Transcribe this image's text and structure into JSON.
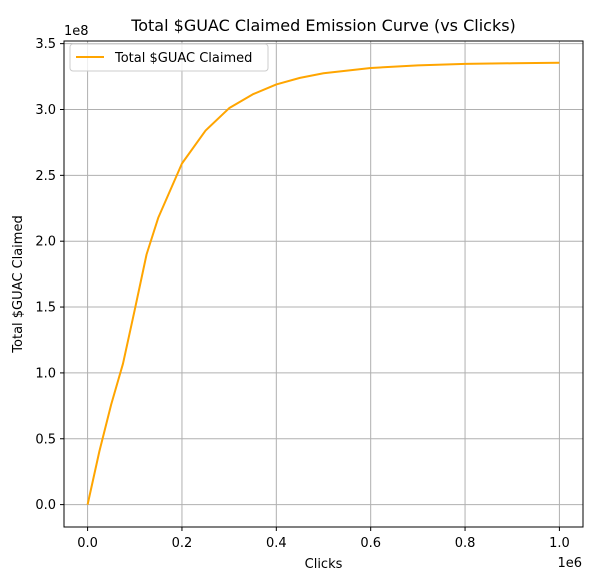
{
  "chart_data": {
    "type": "line",
    "title": "Total $GUAC Claimed Emission Curve (vs Clicks)",
    "xlabel": "Clicks",
    "ylabel": "Total $GUAC Claimed",
    "x_offset_label": "1e6",
    "y_offset_label": "1e8",
    "xlim": [
      -50000,
      1050000
    ],
    "ylim": [
      -17000000,
      352000000
    ],
    "x_ticks": [
      0,
      200000,
      400000,
      600000,
      800000,
      1000000
    ],
    "x_tick_labels": [
      "0.0",
      "0.2",
      "0.4",
      "0.6",
      "0.8",
      "1.0"
    ],
    "y_ticks": [
      0,
      50000000,
      100000000,
      150000000,
      200000000,
      250000000,
      300000000,
      350000000
    ],
    "y_tick_labels": [
      "0.0",
      "0.5",
      "1.0",
      "1.5",
      "2.0",
      "2.5",
      "3.0",
      "3.5"
    ],
    "grid": true,
    "legend_position": "upper-left",
    "series": [
      {
        "name": "Total $GUAC Claimed",
        "color": "#ffa500",
        "x": [
          0,
          25000,
          50000,
          75000,
          100000,
          125000,
          150000,
          200000,
          250000,
          300000,
          350000,
          400000,
          450000,
          500000,
          600000,
          700000,
          800000,
          900000,
          1000000
        ],
        "y": [
          0,
          40500000,
          76000000,
          107000000,
          148000000,
          190000000,
          218000000,
          259000000,
          284000000,
          301000000,
          311500000,
          319000000,
          324000000,
          327500000,
          331500000,
          333500000,
          334600000,
          335100000,
          335500000
        ]
      }
    ]
  }
}
